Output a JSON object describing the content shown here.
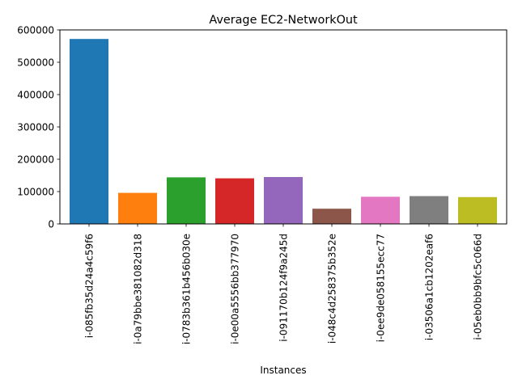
{
  "chart_data": {
    "type": "bar",
    "title": "Average EC2-NetworkOut",
    "xlabel": "Instances",
    "ylabel": "",
    "ylim": [
      0,
      600000
    ],
    "yticks": [
      0,
      100000,
      200000,
      300000,
      400000,
      500000,
      600000
    ],
    "grid": false,
    "categories": [
      "i-085fb35d24a4c59f6",
      "i-0a79bbe381082d318",
      "i-0783b361b456b030e",
      "i-0e00a5556bb377970",
      "i-091170b124f9a245d",
      "i-048c4d258375b352e",
      "i-0ee9de058155ecc77",
      "i-03506a1cb1202eaf6",
      "i-05eb0bb9bfc5c066d"
    ],
    "values": [
      572000,
      96000,
      144000,
      141000,
      145000,
      47000,
      84000,
      86000,
      83000
    ],
    "colors": [
      "#1f77b4",
      "#ff7f0e",
      "#2ca02c",
      "#d62728",
      "#9467bd",
      "#8c564b",
      "#e377c2",
      "#7f7f7f",
      "#bcbd22"
    ]
  }
}
